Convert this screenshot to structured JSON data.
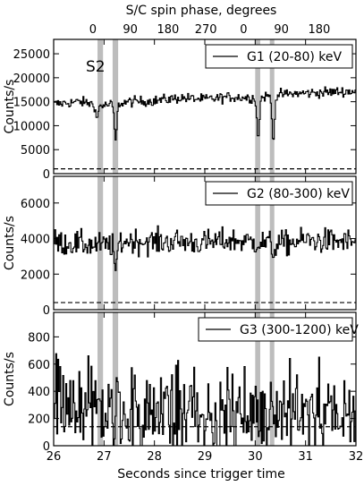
{
  "figure": {
    "top_axis_label": "S/C spin phase, degrees",
    "top_ticks": [
      {
        "label": "0",
        "x": 26.78
      },
      {
        "label": "90",
        "x": 27.52
      },
      {
        "label": "180",
        "x": 28.27
      },
      {
        "label": "270",
        "x": 29.02
      },
      {
        "label": "0",
        "x": 29.77
      },
      {
        "label": "90",
        "x": 30.52
      },
      {
        "label": "180",
        "x": 31.27
      }
    ],
    "xlabel": "Seconds since trigger time",
    "panel_tag": "S2"
  },
  "chart_data": [
    {
      "type": "line",
      "title": "",
      "legend": "G1 (20-80) keV",
      "xlabel": "Seconds since trigger time",
      "ylabel": "Counts/s",
      "xlim": [
        26,
        32
      ],
      "ylim": [
        0,
        28000
      ],
      "x_ticks": [
        26,
        27,
        28,
        29,
        30,
        31,
        32
      ],
      "y_ticks": [
        0,
        5000,
        10000,
        15000,
        20000,
        25000
      ],
      "baseline": 15000,
      "noise": 900,
      "background_level": 1000,
      "dips": [
        [
          26.85,
          11500
        ],
        [
          27.22,
          7000
        ],
        [
          30.05,
          7200
        ],
        [
          30.35,
          6500
        ]
      ],
      "shaded_bands": [
        [
          26.87,
          26.98
        ],
        [
          27.17,
          27.28
        ],
        [
          30.0,
          30.1
        ],
        [
          30.29,
          30.38
        ]
      ],
      "x": [
        26.0,
        26.5,
        27.0,
        27.5,
        28.0,
        28.5,
        29.0,
        29.5,
        30.0,
        30.5,
        31.0,
        31.5,
        32.0
      ],
      "values": [
        14500,
        15000,
        14200,
        15000,
        15200,
        15800,
        15500,
        16000,
        15800,
        16500,
        16800,
        17000,
        17200
      ],
      "legend_position": "top-right"
    },
    {
      "type": "line",
      "title": "",
      "legend": "G2 (80-300) keV",
      "xlabel": "Seconds since trigger time",
      "ylabel": "Counts/s",
      "xlim": [
        26,
        32
      ],
      "ylim": [
        0,
        7500
      ],
      "x_ticks": [
        26,
        27,
        28,
        29,
        30,
        31,
        32
      ],
      "y_ticks": [
        0,
        2000,
        4000,
        6000
      ],
      "baseline": 3800,
      "noise": 600,
      "background_level": 400,
      "dips": [
        [
          27.22,
          2200
        ],
        [
          30.35,
          2900
        ]
      ],
      "shaded_bands": [
        [
          26.87,
          26.98
        ],
        [
          27.17,
          27.28
        ],
        [
          30.0,
          30.1
        ],
        [
          30.29,
          30.38
        ]
      ],
      "x": [
        26.0,
        26.5,
        27.0,
        27.5,
        28.0,
        28.5,
        29.0,
        29.5,
        30.0,
        30.5,
        31.0,
        31.5,
        32.0
      ],
      "values": [
        3800,
        3700,
        3600,
        3900,
        3800,
        3850,
        3750,
        3900,
        3800,
        3700,
        3900,
        3850,
        3800
      ],
      "legend_position": "top-right"
    },
    {
      "type": "line",
      "title": "",
      "legend": "G3 (300-1200) keV",
      "xlabel": "Seconds since trigger time",
      "ylabel": "Counts/s",
      "xlim": [
        26,
        32
      ],
      "ylim": [
        0,
        980
      ],
      "x_ticks": [
        26,
        27,
        28,
        29,
        30,
        31,
        32
      ],
      "y_ticks": [
        0,
        200,
        400,
        600,
        800
      ],
      "baseline": 230,
      "noise": 160,
      "background_level": 140,
      "dips": [],
      "shaded_bands": [
        [
          26.87,
          26.98
        ],
        [
          27.17,
          27.28
        ],
        [
          30.0,
          30.1
        ],
        [
          30.29,
          30.38
        ]
      ],
      "x": [
        26.0,
        26.5,
        27.0,
        27.5,
        28.0,
        28.5,
        29.0,
        29.5,
        30.0,
        30.5,
        31.0,
        31.5,
        32.0
      ],
      "values": [
        250,
        230,
        240,
        260,
        220,
        250,
        230,
        240,
        230,
        250,
        240,
        230,
        250
      ],
      "legend_position": "top-right"
    }
  ]
}
